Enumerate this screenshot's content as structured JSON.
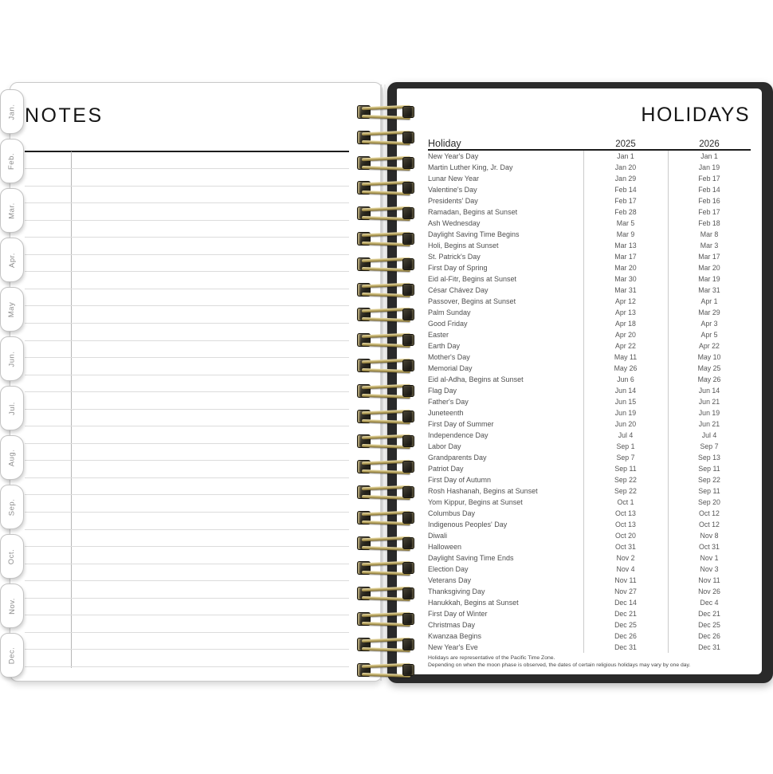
{
  "notes_page": {
    "title": "NOTES"
  },
  "month_tabs": [
    "Jan.",
    "Feb.",
    "Mar.",
    "Apr.",
    "May",
    "Jun.",
    "Jul.",
    "Aug.",
    "Sep.",
    "Oct.",
    "Nov.",
    "Dec."
  ],
  "holidays_page": {
    "title": "HOLIDAYS",
    "columns": {
      "holiday": "Holiday",
      "y2025": "2025",
      "y2026": "2026"
    },
    "rows": [
      {
        "name": "New Year's Day",
        "y2025": "Jan 1",
        "y2026": "Jan 1"
      },
      {
        "name": "Martin Luther King, Jr. Day",
        "y2025": "Jan 20",
        "y2026": "Jan 19"
      },
      {
        "name": "Lunar New Year",
        "y2025": "Jan 29",
        "y2026": "Feb 17"
      },
      {
        "name": "Valentine's Day",
        "y2025": "Feb 14",
        "y2026": "Feb 14"
      },
      {
        "name": "Presidents' Day",
        "y2025": "Feb 17",
        "y2026": "Feb 16"
      },
      {
        "name": "Ramadan, Begins at Sunset",
        "y2025": "Feb 28",
        "y2026": "Feb 17"
      },
      {
        "name": "Ash Wednesday",
        "y2025": "Mar 5",
        "y2026": "Feb 18"
      },
      {
        "name": "Daylight Saving Time Begins",
        "y2025": "Mar 9",
        "y2026": "Mar 8"
      },
      {
        "name": "Holi, Begins at Sunset",
        "y2025": "Mar 13",
        "y2026": "Mar 3"
      },
      {
        "name": "St. Patrick's Day",
        "y2025": "Mar 17",
        "y2026": "Mar 17"
      },
      {
        "name": "First Day of Spring",
        "y2025": "Mar 20",
        "y2026": "Mar 20"
      },
      {
        "name": "Eid al-Fitr, Begins at Sunset",
        "y2025": "Mar 30",
        "y2026": "Mar 19"
      },
      {
        "name": "César Chávez Day",
        "y2025": "Mar 31",
        "y2026": "Mar 31"
      },
      {
        "name": "Passover, Begins at Sunset",
        "y2025": "Apr 12",
        "y2026": "Apr 1"
      },
      {
        "name": "Palm Sunday",
        "y2025": "Apr 13",
        "y2026": "Mar 29"
      },
      {
        "name": "Good Friday",
        "y2025": "Apr 18",
        "y2026": "Apr 3"
      },
      {
        "name": "Easter",
        "y2025": "Apr 20",
        "y2026": "Apr 5"
      },
      {
        "name": "Earth Day",
        "y2025": "Apr 22",
        "y2026": "Apr 22"
      },
      {
        "name": "Mother's Day",
        "y2025": "May 11",
        "y2026": "May 10"
      },
      {
        "name": "Memorial Day",
        "y2025": "May 26",
        "y2026": "May 25"
      },
      {
        "name": "Eid al-Adha, Begins at Sunset",
        "y2025": "Jun 6",
        "y2026": "May 26"
      },
      {
        "name": "Flag Day",
        "y2025": "Jun 14",
        "y2026": "Jun 14"
      },
      {
        "name": "Father's Day",
        "y2025": "Jun 15",
        "y2026": "Jun 21"
      },
      {
        "name": "Juneteenth",
        "y2025": "Jun 19",
        "y2026": "Jun 19"
      },
      {
        "name": "First Day of Summer",
        "y2025": "Jun 20",
        "y2026": "Jun 21"
      },
      {
        "name": "Independence Day",
        "y2025": "Jul 4",
        "y2026": "Jul 4"
      },
      {
        "name": "Labor Day",
        "y2025": "Sep 1",
        "y2026": "Sep 7"
      },
      {
        "name": "Grandparents Day",
        "y2025": "Sep 7",
        "y2026": "Sep 13"
      },
      {
        "name": "Patriot Day",
        "y2025": "Sep 11",
        "y2026": "Sep 11"
      },
      {
        "name": "First Day of Autumn",
        "y2025": "Sep 22",
        "y2026": "Sep 22"
      },
      {
        "name": "Rosh Hashanah, Begins at Sunset",
        "y2025": "Sep 22",
        "y2026": "Sep 11"
      },
      {
        "name": "Yom Kippur, Begins at Sunset",
        "y2025": "Oct 1",
        "y2026": "Sep 20"
      },
      {
        "name": "Columbus Day",
        "y2025": "Oct 13",
        "y2026": "Oct 12"
      },
      {
        "name": "Indigenous Peoples' Day",
        "y2025": "Oct 13",
        "y2026": "Oct 12"
      },
      {
        "name": "Diwali",
        "y2025": "Oct 20",
        "y2026": "Nov 8"
      },
      {
        "name": "Halloween",
        "y2025": "Oct 31",
        "y2026": "Oct 31"
      },
      {
        "name": "Daylight Saving Time Ends",
        "y2025": "Nov 2",
        "y2026": "Nov 1"
      },
      {
        "name": "Election Day",
        "y2025": "Nov 4",
        "y2026": "Nov 3"
      },
      {
        "name": "Veterans Day",
        "y2025": "Nov 11",
        "y2026": "Nov 11"
      },
      {
        "name": "Thanksgiving Day",
        "y2025": "Nov 27",
        "y2026": "Nov 26"
      },
      {
        "name": "Hanukkah, Begins at Sunset",
        "y2025": "Dec 14",
        "y2026": "Dec 4"
      },
      {
        "name": "First Day of Winter",
        "y2025": "Dec 21",
        "y2026": "Dec 21"
      },
      {
        "name": "Christmas Day",
        "y2025": "Dec 25",
        "y2026": "Dec 25"
      },
      {
        "name": "Kwanzaa Begins",
        "y2025": "Dec 26",
        "y2026": "Dec 26"
      },
      {
        "name": "New Year's Eve",
        "y2025": "Dec 31",
        "y2026": "Dec 31"
      }
    ],
    "footnotes": [
      "Holidays are representative of the Pacific Time Zone.",
      "Depending on when the moon phase is observed, the dates of certain religious holidays may vary by one day."
    ]
  },
  "colors": {
    "coil_gold": "#ab974f",
    "cover_black": "#2a2a2a",
    "rule_black": "#1c1c1c"
  }
}
